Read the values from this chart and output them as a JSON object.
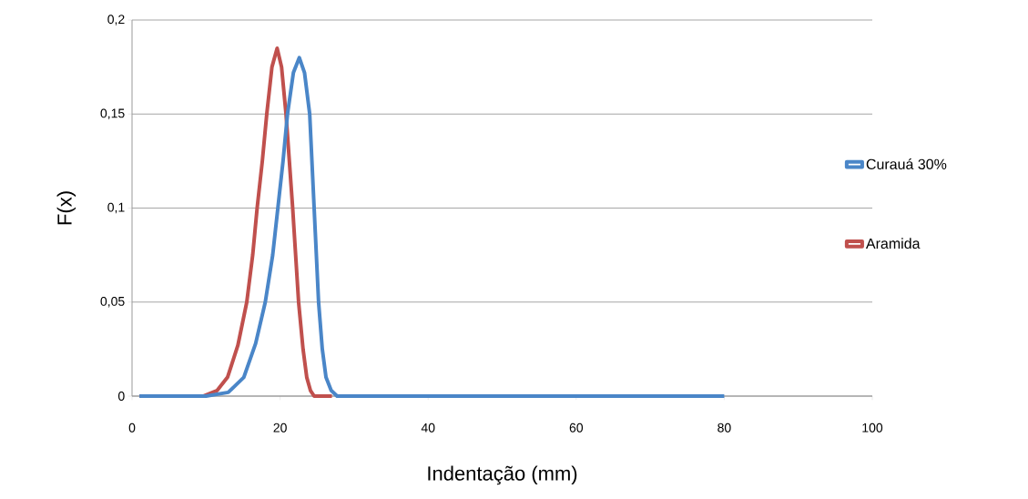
{
  "chart_data": {
    "type": "line",
    "xlabel": "Indentação (mm)",
    "ylabel": "F(x)",
    "xlim": [
      0,
      100
    ],
    "ylim": [
      0,
      0.2
    ],
    "xticks": [
      0,
      20,
      40,
      60,
      80,
      100
    ],
    "yticks": [
      {
        "value": 0,
        "label": "0"
      },
      {
        "value": 0.05,
        "label": "0,05"
      },
      {
        "value": 0.1,
        "label": "0,1"
      },
      {
        "value": 0.15,
        "label": "0,15"
      },
      {
        "value": 0.2,
        "label": "0,2"
      }
    ],
    "grid": "y",
    "legend": "right",
    "marker": "none",
    "line_style": "solid",
    "series": [
      {
        "name": "Curauá 30%",
        "color": "#4a86c8",
        "x": [
          1,
          10,
          13,
          15.1,
          16.7,
          18,
          19,
          19.7,
          20.4,
          21,
          21.8,
          22.6,
          23.3,
          24,
          24.6,
          25.2,
          25.7,
          26.2,
          26.9,
          27.7,
          30,
          40,
          60,
          80
        ],
        "values": [
          0,
          0,
          0.002,
          0.01,
          0.028,
          0.05,
          0.075,
          0.1,
          0.125,
          0.15,
          0.172,
          0.18,
          0.172,
          0.15,
          0.1,
          0.05,
          0.025,
          0.01,
          0.003,
          0,
          0,
          0,
          0,
          0
        ]
      },
      {
        "name": "Aramida",
        "color": "#c0504d",
        "x": [
          1,
          9.6,
          11.5,
          12.9,
          14.3,
          15.5,
          16.3,
          16.9,
          17.6,
          18.2,
          18.9,
          19.6,
          20.2,
          20.8,
          21.7,
          22.5,
          23.1,
          23.6,
          24.1,
          24.6,
          27
        ],
        "values": [
          0,
          0,
          0.003,
          0.01,
          0.027,
          0.05,
          0.075,
          0.1,
          0.125,
          0.15,
          0.175,
          0.185,
          0.175,
          0.15,
          0.1,
          0.05,
          0.025,
          0.01,
          0.003,
          0,
          0
        ]
      }
    ]
  }
}
